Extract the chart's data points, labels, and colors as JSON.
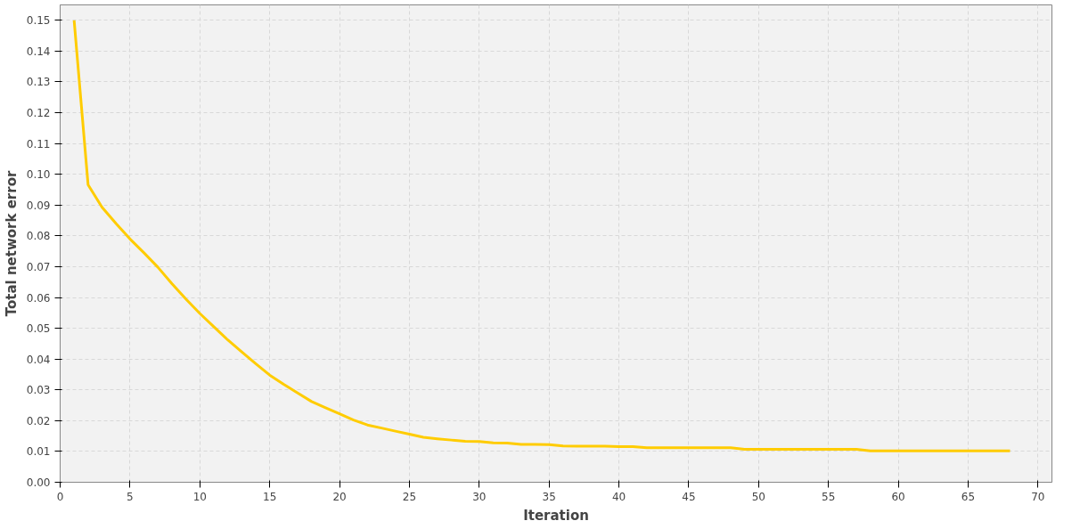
{
  "chart_data": {
    "type": "line",
    "xlabel": "Iteration",
    "ylabel": "Total network error",
    "x": [
      1,
      2,
      3,
      4,
      5,
      6,
      7,
      8,
      9,
      10,
      11,
      12,
      13,
      14,
      15,
      16,
      17,
      18,
      19,
      20,
      21,
      22,
      23,
      24,
      25,
      26,
      27,
      28,
      29,
      30,
      31,
      32,
      33,
      34,
      35,
      36,
      37,
      38,
      39,
      40,
      41,
      42,
      43,
      44,
      45,
      46,
      47,
      48,
      49,
      50,
      51,
      52,
      53,
      54,
      55,
      56,
      57,
      58,
      59,
      60,
      61,
      62,
      63,
      64,
      65,
      66,
      67,
      68
    ],
    "series": [
      {
        "color": "#ffcc00",
        "values": [
          0.15,
          0.0966,
          0.0893,
          0.084,
          0.079,
          0.0745,
          0.0698,
          0.0645,
          0.0595,
          0.0548,
          0.0505,
          0.0462,
          0.0423,
          0.0385,
          0.0348,
          0.0318,
          0.029,
          0.0262,
          0.0242,
          0.0222,
          0.0202,
          0.0186,
          0.0176,
          0.0166,
          0.0156,
          0.0146,
          0.0141,
          0.0137,
          0.0133,
          0.0132,
          0.0128,
          0.0127,
          0.0123,
          0.0123,
          0.0122,
          0.0118,
          0.0117,
          0.0117,
          0.0117,
          0.0116,
          0.0116,
          0.0112,
          0.0112,
          0.0112,
          0.0112,
          0.0112,
          0.0112,
          0.0112,
          0.0107,
          0.0107,
          0.0107,
          0.0107,
          0.0107,
          0.0107,
          0.0107,
          0.0107,
          0.0107,
          0.0102,
          0.0102,
          0.0102,
          0.0102,
          0.0102,
          0.0102,
          0.0102,
          0.0102,
          0.0102,
          0.0102,
          0.0102
        ]
      }
    ],
    "xlim": [
      0,
      71
    ],
    "ylim": [
      0,
      0.155
    ],
    "xticks": [
      0,
      5,
      10,
      15,
      20,
      25,
      30,
      35,
      40,
      45,
      50,
      55,
      60,
      65,
      70
    ],
    "yticks": [
      {
        "value": 0,
        "label": "0.00"
      },
      {
        "value": 0.01,
        "label": "0.01"
      },
      {
        "value": 0.02,
        "label": "0.02"
      },
      {
        "value": 0.03,
        "label": "0.03"
      },
      {
        "value": 0.04,
        "label": "0.04"
      },
      {
        "value": 0.05,
        "label": "0.05"
      },
      {
        "value": 0.06,
        "label": "0.06"
      },
      {
        "value": 0.07,
        "label": "0.07"
      },
      {
        "value": 0.08,
        "label": "0.08"
      },
      {
        "value": 0.09,
        "label": "0.09"
      },
      {
        "value": 0.1,
        "label": "0.10"
      },
      {
        "value": 0.11,
        "label": "0.11"
      },
      {
        "value": 0.12,
        "label": "0.12"
      },
      {
        "value": 0.13,
        "label": "0.13"
      },
      {
        "value": 0.14,
        "label": "0.14"
      },
      {
        "value": 0.15,
        "label": "0.15"
      }
    ],
    "grid": true,
    "marker": "none",
    "line_style": "solid"
  }
}
